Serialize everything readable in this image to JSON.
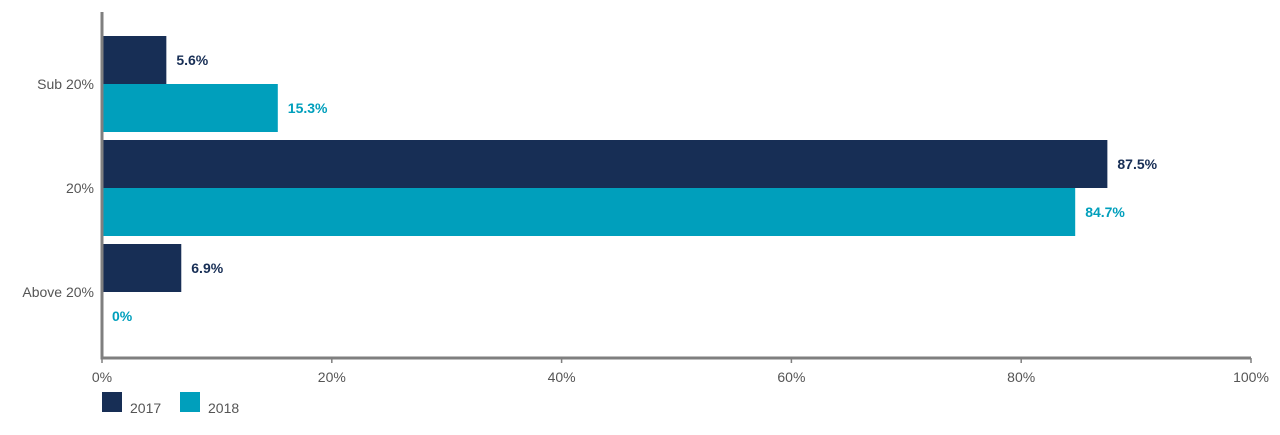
{
  "chart_data": {
    "type": "bar",
    "orientation": "horizontal",
    "categories": [
      "Sub 20%",
      "20%",
      "Above 20%"
    ],
    "series": [
      {
        "name": "2017",
        "color": "#172e55",
        "values": [
          5.6,
          87.5,
          6.9
        ],
        "labels": [
          "5.6%",
          "87.5%",
          "6.9%"
        ]
      },
      {
        "name": "2018",
        "color": "#009fbc",
        "values": [
          15.3,
          84.7,
          0
        ],
        "labels": [
          "15.3%",
          "84.7%",
          "0%"
        ]
      }
    ],
    "xlim": [
      0,
      100
    ],
    "xticks": [
      0,
      20,
      40,
      60,
      80,
      100
    ],
    "xtick_labels": [
      "0%",
      "20%",
      "40%",
      "60%",
      "80%",
      "100%"
    ],
    "grid": false,
    "legend_position": "bottom-left",
    "axis_color": "#7f7f7f"
  }
}
